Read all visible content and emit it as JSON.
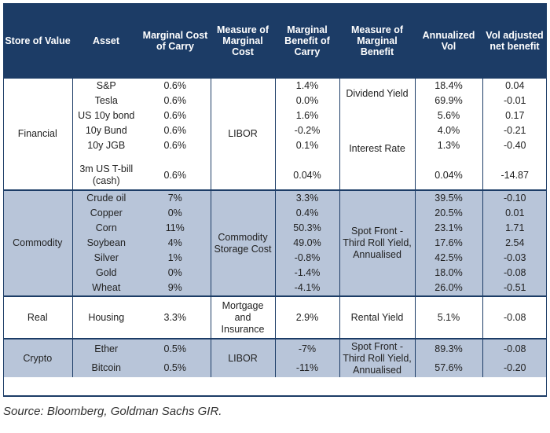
{
  "headers": {
    "store": "Store of Value",
    "asset": "Asset",
    "cost": "Marginal Cost of Carry",
    "cost_measure": "Measure of Marginal Cost",
    "benefit": "Marginal Benefit of Carry",
    "benefit_measure": "Measure of Marginal Benefit",
    "vol": "Annualized Vol",
    "net": "Vol adjusted net benefit"
  },
  "groups": {
    "financial": {
      "store": "Financial",
      "cost_measure": "LIBOR",
      "benefit_measure_1": "Dividend Yield",
      "benefit_measure_2": "Interest Rate",
      "rows": [
        {
          "asset": "S&P",
          "cost": "0.6%",
          "benefit": "1.4%",
          "vol": "18.4%",
          "net": "0.04"
        },
        {
          "asset": "Tesla",
          "cost": "0.6%",
          "benefit": "0.0%",
          "vol": "69.9%",
          "net": "-0.01"
        },
        {
          "asset": "US 10y bond",
          "cost": "0.6%",
          "benefit": "1.6%",
          "vol": "5.6%",
          "net": "0.17"
        },
        {
          "asset": "10y Bund",
          "cost": "0.6%",
          "benefit": "-0.2%",
          "vol": "4.0%",
          "net": "-0.21"
        },
        {
          "asset": "10y JGB",
          "cost": "0.6%",
          "benefit": "0.1%",
          "vol": "1.3%",
          "net": "-0.40"
        },
        {
          "asset": "3m US T-bill (cash)",
          "cost": "0.6%",
          "benefit": "0.04%",
          "vol": "0.04%",
          "net": "-14.87"
        }
      ]
    },
    "commodity": {
      "store": "Commodity",
      "cost_measure": "Commodity Storage Cost",
      "benefit_measure": "Spot Front - Third Roll Yield, Annualised",
      "rows": [
        {
          "asset": "Crude oil",
          "cost": "7%",
          "benefit": "3.3%",
          "vol": "39.5%",
          "net": "-0.10"
        },
        {
          "asset": "Copper",
          "cost": "0%",
          "benefit": "0.4%",
          "vol": "20.5%",
          "net": "0.01"
        },
        {
          "asset": "Corn",
          "cost": "11%",
          "benefit": "50.3%",
          "vol": "23.1%",
          "net": "1.71"
        },
        {
          "asset": "Soybean",
          "cost": "4%",
          "benefit": "49.0%",
          "vol": "17.6%",
          "net": "2.54"
        },
        {
          "asset": "Silver",
          "cost": "1%",
          "benefit": "-0.8%",
          "vol": "42.5%",
          "net": "-0.03"
        },
        {
          "asset": "Gold",
          "cost": "0%",
          "benefit": "-1.4%",
          "vol": "18.0%",
          "net": "-0.08"
        },
        {
          "asset": "Wheat",
          "cost": "9%",
          "benefit": "-4.1%",
          "vol": "26.0%",
          "net": "-0.51"
        }
      ]
    },
    "real": {
      "store": "Real",
      "cost_measure": "Mortgage and Insurance",
      "benefit_measure": "Rental Yield",
      "rows": [
        {
          "asset": "Housing",
          "cost": "3.3%",
          "benefit": "2.9%",
          "vol": "5.1%",
          "net": "-0.08"
        }
      ]
    },
    "crypto": {
      "store": "Crypto",
      "cost_measure": "LIBOR",
      "benefit_measure": "Spot Front - Third Roll Yield, Annualised",
      "rows": [
        {
          "asset": "Ether",
          "cost": "0.5%",
          "benefit": "-7%",
          "vol": "89.3%",
          "net": "-0.08"
        },
        {
          "asset": "Bitcoin",
          "cost": "0.5%",
          "benefit": "-11%",
          "vol": "57.6%",
          "net": "-0.20"
        }
      ]
    }
  },
  "source": "Source: Bloomberg, Goldman Sachs GIR."
}
